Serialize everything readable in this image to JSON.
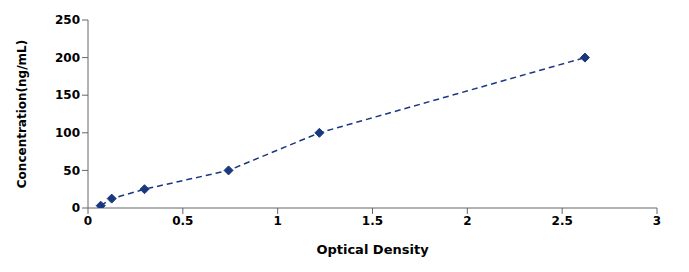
{
  "chart_data": {
    "type": "line",
    "x": [
      0.067,
      0.125,
      0.298,
      0.741,
      1.22,
      2.62
    ],
    "values": [
      3.13,
      12.5,
      25,
      50,
      100,
      200
    ],
    "color": "#1a3880",
    "marker": "diamond",
    "line_style": "dashed",
    "xlabel": "Optical Density",
    "ylabel": "Concentration(ng/mL)",
    "xlim": [
      0,
      3
    ],
    "ylim": [
      0,
      250
    ],
    "xticks": [
      0,
      0.5,
      1,
      1.5,
      2,
      2.5,
      3
    ],
    "yticks": [
      0,
      50,
      100,
      150,
      200,
      250
    ],
    "grid": false
  }
}
